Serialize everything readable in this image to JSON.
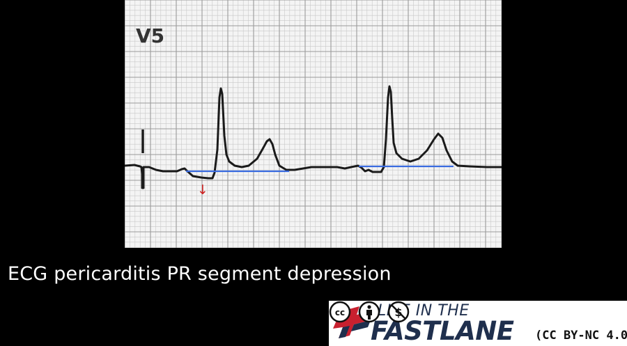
{
  "ecg": {
    "lead_label": "V5",
    "paper_color": "#f4f4f4",
    "grid_minor_color": "#c8c8c8",
    "grid_major_color": "#9a9a9a",
    "trace_color": "#1a1a1a",
    "baseline_marker_color": "#3a6be0",
    "arrow_color": "#cc1f1f",
    "arrow_glyph": "↓"
  },
  "caption": {
    "text": "ECG pericarditis PR segment depression"
  },
  "logo": {
    "line1": "LIFE IN THE",
    "line2": "FASTLANE",
    "accent_red": "#c8202f",
    "navy": "#1f2f4d",
    "license_text": "(CC BY-NC 4.0)",
    "license_icons": [
      "cc-icon",
      "attribution-icon",
      "noncommercial-icon"
    ]
  }
}
